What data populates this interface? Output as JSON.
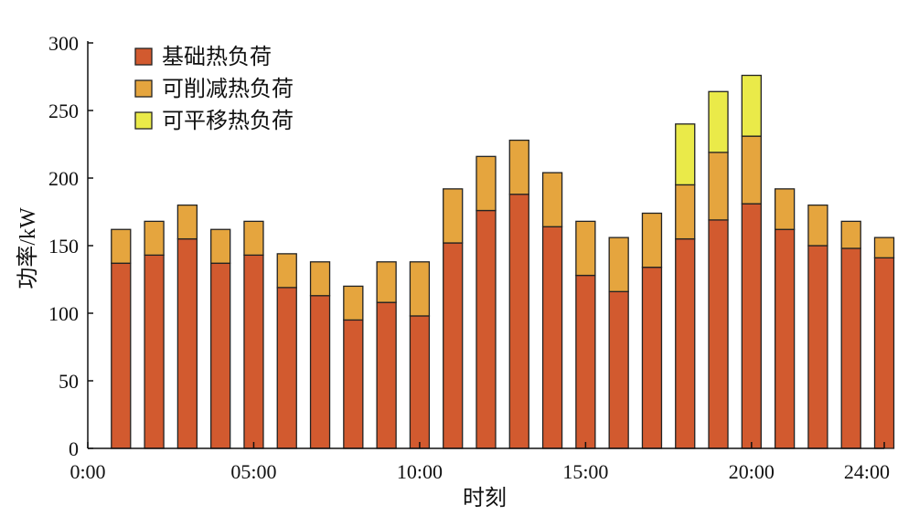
{
  "chart_data": {
    "type": "bar",
    "stacked": true,
    "xlabel": "时刻",
    "ylabel": "功率/kW",
    "ylim": [
      0,
      300
    ],
    "yticks": [
      0,
      50,
      100,
      150,
      200,
      250,
      300
    ],
    "xticks": [
      {
        "label": "0:00",
        "hour": 0
      },
      {
        "label": "05:00",
        "hour": 5
      },
      {
        "label": "10:00",
        "hour": 10
      },
      {
        "label": "15:00",
        "hour": 15
      },
      {
        "label": "20:00",
        "hour": 20
      },
      {
        "label": "24:00",
        "hour": 24
      }
    ],
    "x": [
      1,
      2,
      3,
      4,
      5,
      6,
      7,
      8,
      9,
      10,
      11,
      12,
      13,
      14,
      15,
      16,
      17,
      18,
      19,
      20,
      21,
      22,
      23,
      24
    ],
    "series": [
      {
        "name": "基础热负荷",
        "color": "#d25a2f",
        "values": [
          137,
          143,
          155,
          137,
          143,
          119,
          113,
          95,
          108,
          98,
          152,
          176,
          188,
          164,
          128,
          116,
          134,
          155,
          169,
          181,
          162,
          150,
          148,
          141
        ]
      },
      {
        "name": "可削减热负荷",
        "color": "#e5a53e",
        "values": [
          25,
          25,
          25,
          25,
          25,
          25,
          25,
          25,
          30,
          40,
          40,
          40,
          40,
          40,
          40,
          40,
          40,
          40,
          50,
          50,
          30,
          30,
          20,
          15
        ]
      },
      {
        "name": "可平移热负荷",
        "color": "#eaea49",
        "values": [
          0,
          0,
          0,
          0,
          0,
          0,
          0,
          0,
          0,
          0,
          0,
          0,
          0,
          0,
          0,
          0,
          0,
          45,
          45,
          45,
          0,
          0,
          0,
          0
        ]
      }
    ],
    "legend_position": "top-left",
    "grid": false
  }
}
